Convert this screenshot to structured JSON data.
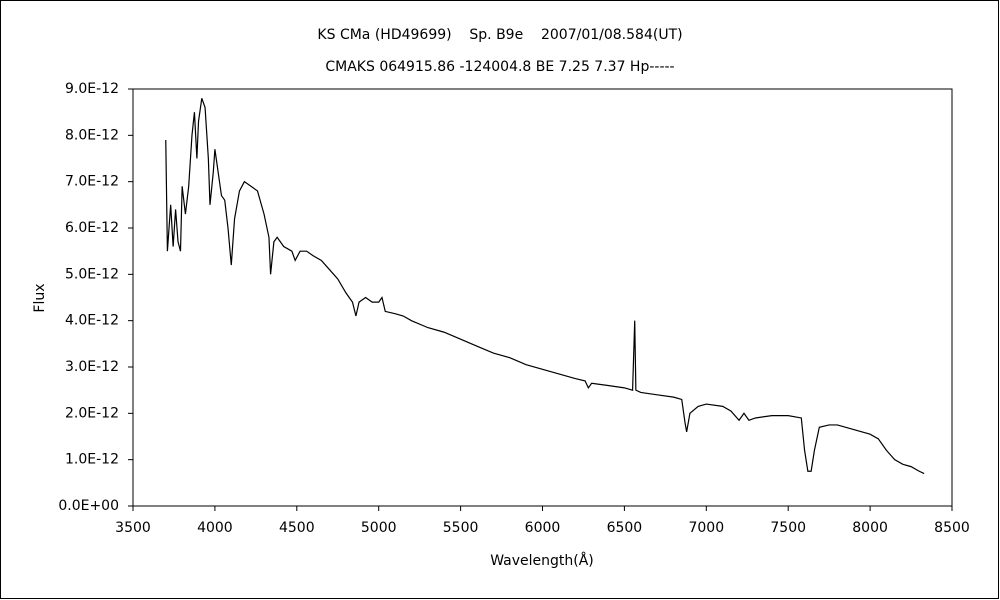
{
  "chart_data": {
    "type": "line",
    "title": "KS CMa (HD49699)    Sp. B9e    2007/01/08.584(UT)",
    "subtitle": "CMAKS 064915.86 -124004.8 BE 7.25 7.37 Hp-----",
    "x_label": "Wavelength(Å)",
    "y_label": "Flux",
    "color": "#000000",
    "xlim": [
      3500,
      8500
    ],
    "xticks": [
      3500,
      4000,
      4500,
      5000,
      5500,
      6000,
      6500,
      7000,
      7500,
      8000,
      8500
    ],
    "ylim": [
      0,
      9e-12
    ],
    "yticks": [
      {
        "value": 0,
        "label": "0.0E+00"
      },
      {
        "value": 1e-12,
        "label": "1.0E-12"
      },
      {
        "value": 2e-12,
        "label": "2.0E-12"
      },
      {
        "value": 3e-12,
        "label": "3.0E-12"
      },
      {
        "value": 4e-12,
        "label": "4.0E-12"
      },
      {
        "value": 5e-12,
        "label": "5.0E-12"
      },
      {
        "value": 6e-12,
        "label": "6.0E-12"
      },
      {
        "value": 7e-12,
        "label": "7.0E-12"
      },
      {
        "value": 8e-12,
        "label": "8.0E-12"
      },
      {
        "value": 9e-12,
        "label": "9.0E-12"
      }
    ],
    "grid": false,
    "x": [
      3700,
      3710,
      3730,
      3745,
      3760,
      3775,
      3790,
      3800,
      3820,
      3840,
      3860,
      3875,
      3890,
      3900,
      3920,
      3940,
      3960,
      3970,
      3990,
      4000,
      4020,
      4040,
      4060,
      4080,
      4100,
      4120,
      4150,
      4180,
      4220,
      4260,
      4300,
      4330,
      4340,
      4360,
      4380,
      4420,
      4470,
      4490,
      4520,
      4560,
      4600,
      4650,
      4700,
      4750,
      4800,
      4840,
      4861,
      4880,
      4920,
      4960,
      5000,
      5020,
      5040,
      5100,
      5150,
      5200,
      5300,
      5400,
      5500,
      5600,
      5700,
      5800,
      5900,
      6000,
      6100,
      6200,
      6260,
      6280,
      6300,
      6400,
      6500,
      6550,
      6563,
      6570,
      6600,
      6700,
      6800,
      6850,
      6870,
      6880,
      6900,
      6950,
      7000,
      7100,
      7150,
      7200,
      7230,
      7260,
      7300,
      7400,
      7500,
      7580,
      7600,
      7620,
      7640,
      7660,
      7690,
      7750,
      7800,
      7900,
      8000,
      8050,
      8100,
      8150,
      8200,
      8250,
      8300,
      8330
    ],
    "values": [
      7.9e-12,
      5.5e-12,
      6.5e-12,
      5.6e-12,
      6.4e-12,
      5.7e-12,
      5.5e-12,
      6.9e-12,
      6.3e-12,
      6.9e-12,
      8e-12,
      8.5e-12,
      7.5e-12,
      8.3e-12,
      8.8e-12,
      8.6e-12,
      7.5e-12,
      6.5e-12,
      7.2e-12,
      7.7e-12,
      7.2e-12,
      6.7e-12,
      6.6e-12,
      6e-12,
      5.2e-12,
      6.2e-12,
      6.8e-12,
      7e-12,
      6.9e-12,
      6.8e-12,
      6.3e-12,
      5.8e-12,
      5e-12,
      5.7e-12,
      5.8e-12,
      5.6e-12,
      5.5e-12,
      5.3e-12,
      5.5e-12,
      5.5e-12,
      5.4e-12,
      5.3e-12,
      5.1e-12,
      4.9e-12,
      4.6e-12,
      4.4e-12,
      4.1e-12,
      4.4e-12,
      4.5e-12,
      4.4e-12,
      4.4e-12,
      4.5e-12,
      4.2e-12,
      4.15e-12,
      4.1e-12,
      4e-12,
      3.85e-12,
      3.75e-12,
      3.6e-12,
      3.45e-12,
      3.3e-12,
      3.2e-12,
      3.05e-12,
      2.95e-12,
      2.85e-12,
      2.75e-12,
      2.7e-12,
      2.55e-12,
      2.65e-12,
      2.6e-12,
      2.55e-12,
      2.5e-12,
      4e-12,
      2.5e-12,
      2.45e-12,
      2.4e-12,
      2.35e-12,
      2.3e-12,
      1.8e-12,
      1.6e-12,
      2e-12,
      2.15e-12,
      2.2e-12,
      2.15e-12,
      2.05e-12,
      1.85e-12,
      2e-12,
      1.85e-12,
      1.9e-12,
      1.95e-12,
      1.95e-12,
      1.9e-12,
      1.2e-12,
      7.5e-13,
      7.5e-13,
      1.2e-12,
      1.7e-12,
      1.75e-12,
      1.75e-12,
      1.65e-12,
      1.55e-12,
      1.45e-12,
      1.2e-12,
      1e-12,
      9e-13,
      8.5e-13,
      7.5e-13,
      7e-13
    ]
  }
}
